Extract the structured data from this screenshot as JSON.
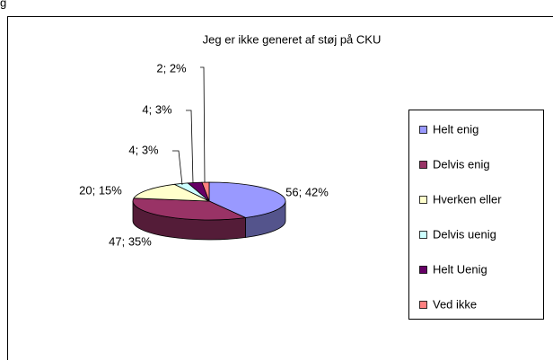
{
  "header_fragment": "g",
  "chart_data": {
    "type": "pie",
    "title": "Jeg er ikke generet af støj på CKU",
    "categories": [
      "Helt enig",
      "Delvis enig",
      "Hverken eller",
      "Delvis uenig",
      "Helt Uenig",
      "Ved ikke"
    ],
    "values": [
      56,
      47,
      20,
      4,
      4,
      2
    ],
    "value_labels": [
      "56; 42%",
      "47; 35%",
      "20; 15%",
      "4; 3%",
      "4; 3%",
      "2; 2%"
    ],
    "colors": [
      "#9999ff",
      "#993366",
      "#ffffcc",
      "#ccffff",
      "#660066",
      "#ff8080"
    ],
    "legend": "right"
  }
}
